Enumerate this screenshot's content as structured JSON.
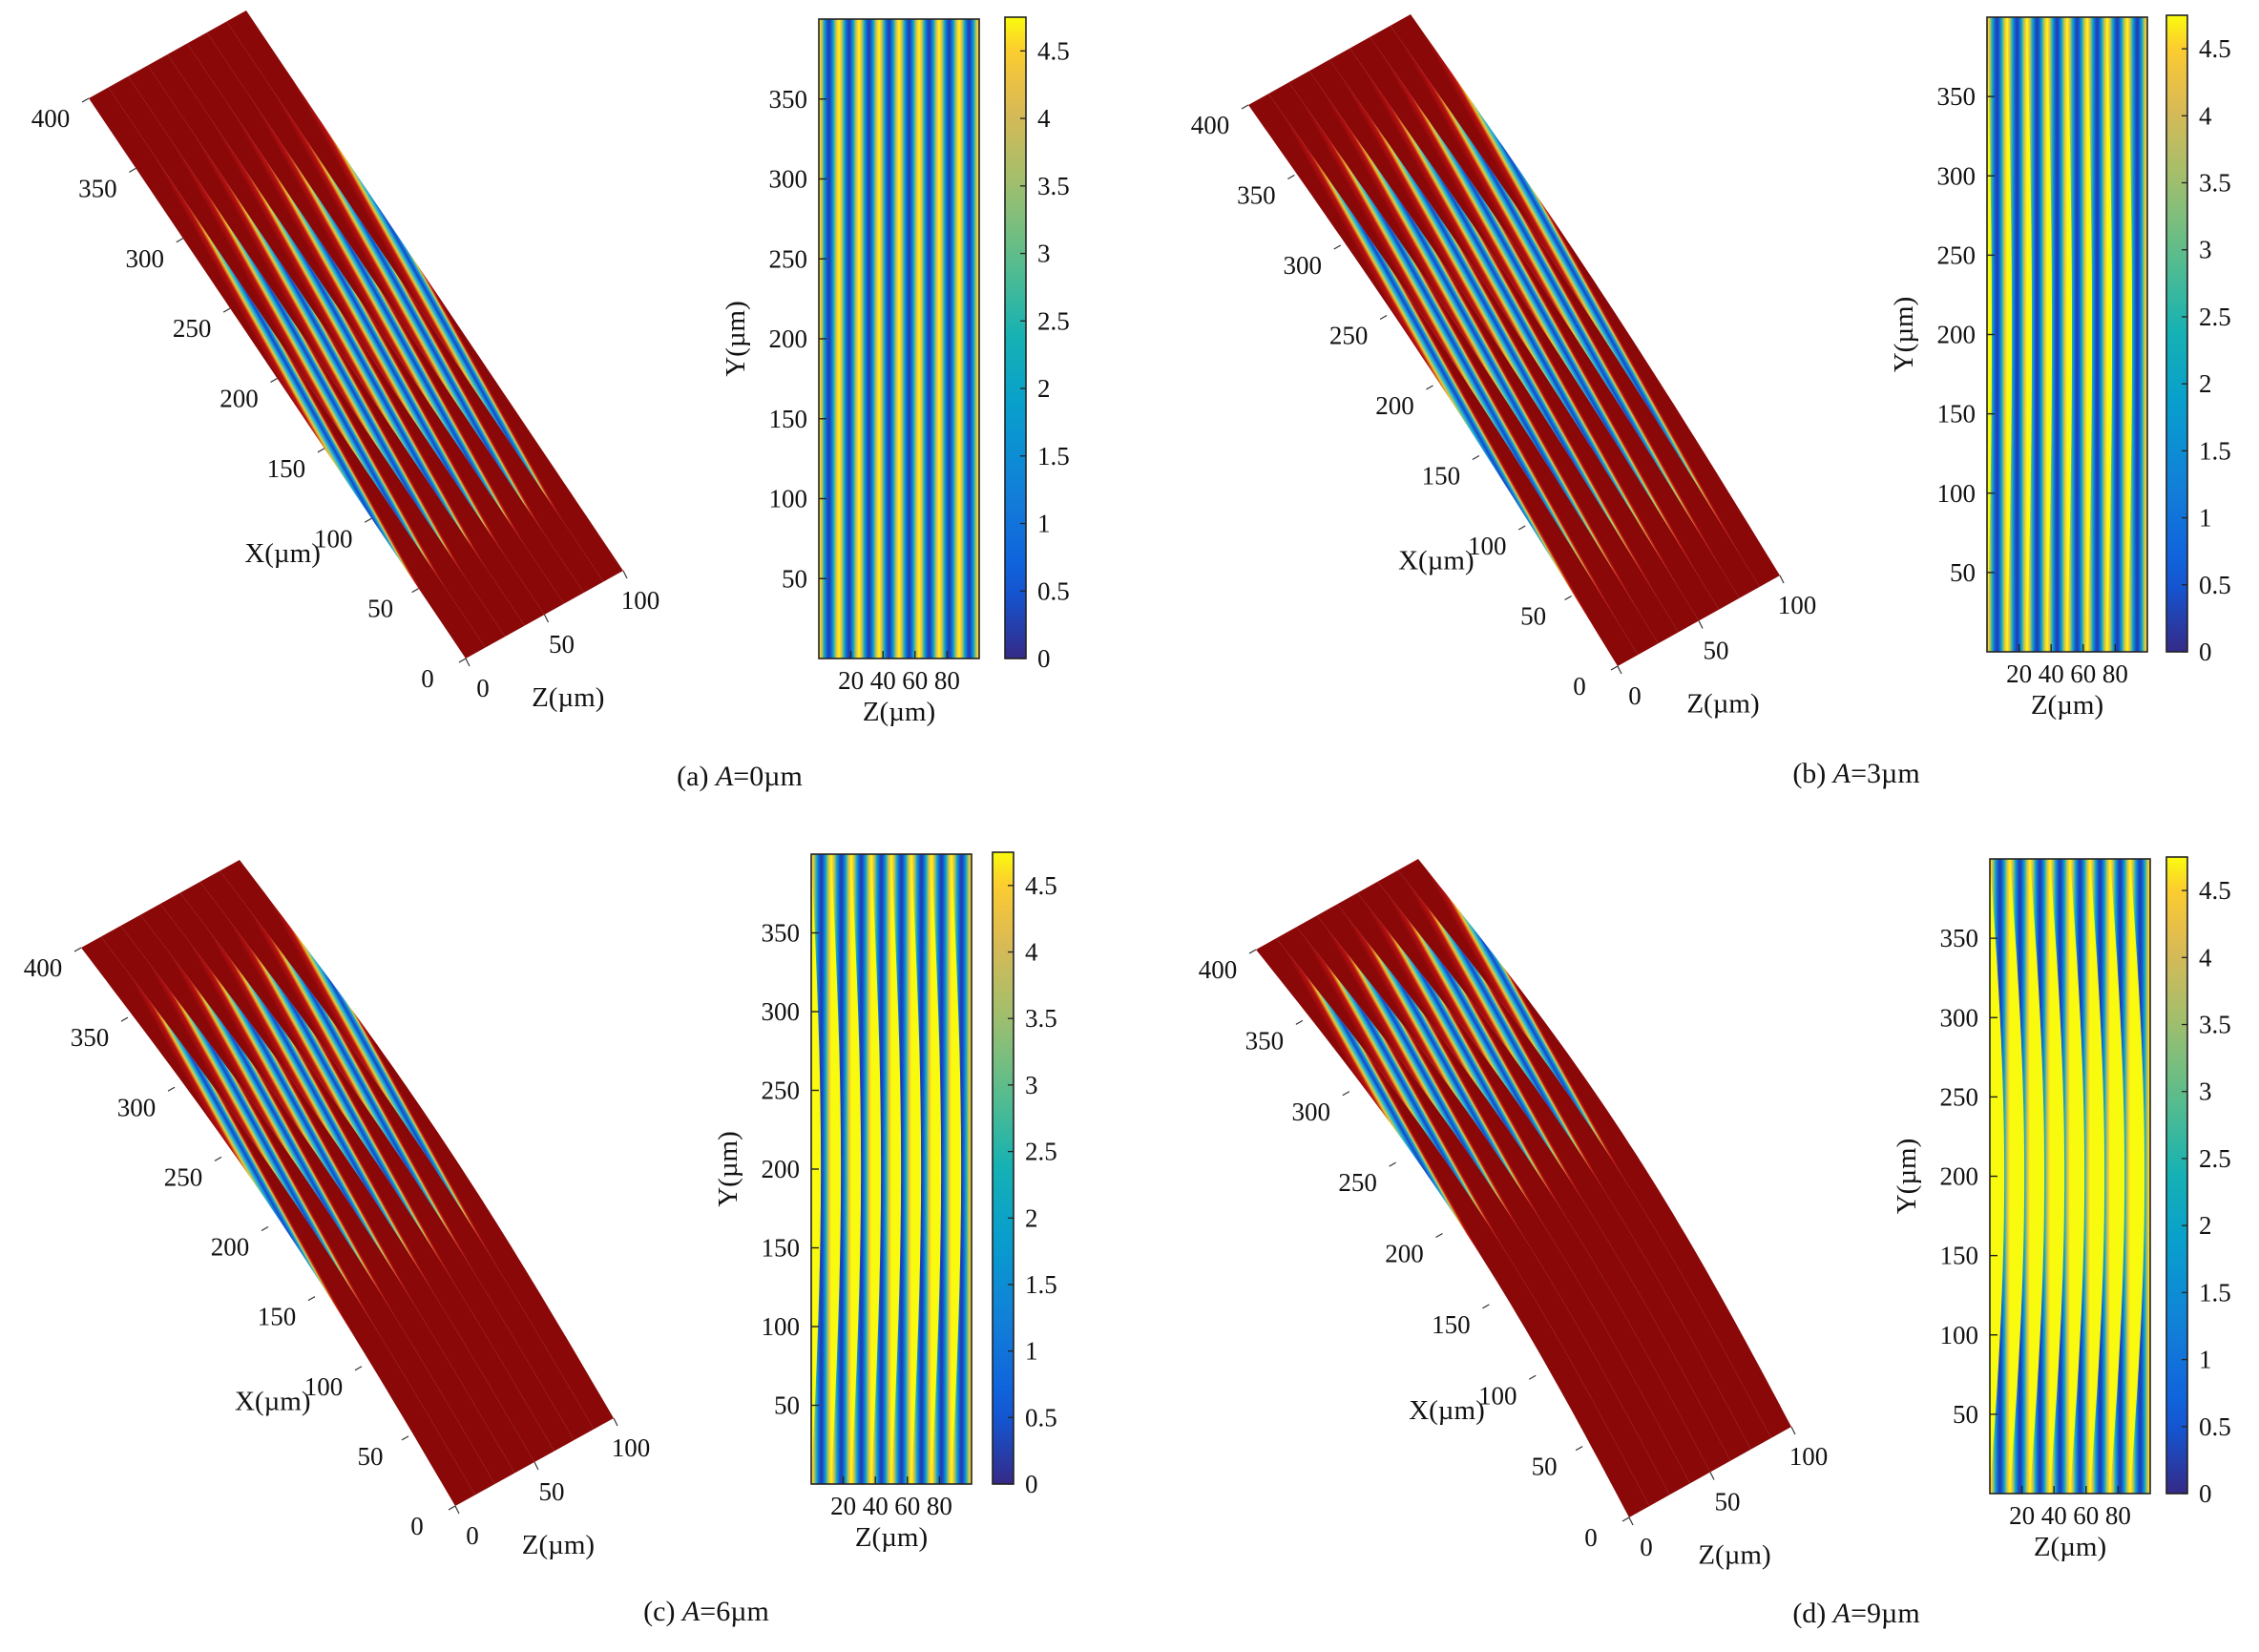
{
  "chart_data": [
    {
      "panel": "a",
      "caption_prefix": "(a) ",
      "caption_var": "A",
      "caption_suffix": "=0µm",
      "amplitude_um": 0,
      "surface3d": {
        "type": "surface",
        "xlabel": "X(µm)",
        "zlabel": "Z(µm)",
        "x_ticks": [
          0,
          50,
          100,
          150,
          200,
          250,
          300,
          350,
          400
        ],
        "z_ticks": [
          0,
          50,
          100
        ]
      },
      "map2d": {
        "type": "heatmap",
        "xlabel": "Z(µm)",
        "ylabel": "Y(µm)",
        "x_ticks": [
          20,
          40,
          60,
          80
        ],
        "y_ticks": [
          50,
          100,
          150,
          200,
          250,
          300,
          350
        ],
        "xlim": [
          0,
          100
        ],
        "ylim": [
          0,
          400
        ],
        "stripe_count": 8,
        "colorbar_ticks": [
          "0",
          "0.5",
          "1",
          "1.5",
          "2",
          "2.5",
          "3",
          "3.5",
          "4",
          "4.5"
        ],
        "clim": [
          0,
          4.75
        ]
      }
    },
    {
      "panel": "b",
      "caption_prefix": "(b) ",
      "caption_var": "A",
      "caption_suffix": "=3µm",
      "amplitude_um": 3,
      "surface3d": {
        "type": "surface",
        "xlabel": "X(µm)",
        "zlabel": "Z(µm)",
        "x_ticks": [
          0,
          50,
          100,
          150,
          200,
          250,
          300,
          350,
          400
        ],
        "z_ticks": [
          0,
          50,
          100
        ]
      },
      "map2d": {
        "type": "heatmap",
        "xlabel": "Z(µm)",
        "ylabel": "Y(µm)",
        "x_ticks": [
          20,
          40,
          60,
          80
        ],
        "y_ticks": [
          50,
          100,
          150,
          200,
          250,
          300,
          350
        ],
        "xlim": [
          0,
          100
        ],
        "ylim": [
          0,
          400
        ],
        "stripe_count": 8,
        "colorbar_ticks": [
          "0",
          "0.5",
          "1",
          "1.5",
          "2",
          "2.5",
          "3",
          "3.5",
          "4",
          "4.5"
        ],
        "clim": [
          0,
          4.75
        ]
      }
    },
    {
      "panel": "c",
      "caption_prefix": "(c) ",
      "caption_var": "A",
      "caption_suffix": "=6µm",
      "amplitude_um": 6,
      "surface3d": {
        "type": "surface",
        "xlabel": "X(µm)",
        "zlabel": "Z(µm)",
        "x_ticks": [
          0,
          50,
          100,
          150,
          200,
          250,
          300,
          350,
          400
        ],
        "z_ticks": [
          0,
          50,
          100
        ]
      },
      "map2d": {
        "type": "heatmap",
        "xlabel": "Z(µm)",
        "ylabel": "Y(µm)",
        "x_ticks": [
          20,
          40,
          60,
          80
        ],
        "y_ticks": [
          50,
          100,
          150,
          200,
          250,
          300,
          350
        ],
        "xlim": [
          0,
          100
        ],
        "ylim": [
          0,
          400
        ],
        "stripe_count": 8,
        "colorbar_ticks": [
          "0",
          "0.5",
          "1",
          "1.5",
          "2",
          "2.5",
          "3",
          "3.5",
          "4",
          "4.5"
        ],
        "clim": [
          0,
          4.75
        ]
      }
    },
    {
      "panel": "d",
      "caption_prefix": "(d) ",
      "caption_var": "A",
      "caption_suffix": "=9µm",
      "amplitude_um": 9,
      "surface3d": {
        "type": "surface",
        "xlabel": "X(µm)",
        "zlabel": "Z(µm)",
        "x_ticks": [
          0,
          50,
          100,
          150,
          200,
          250,
          300,
          350,
          400
        ],
        "z_ticks": [
          0,
          50,
          100
        ]
      },
      "map2d": {
        "type": "heatmap",
        "xlabel": "Z(µm)",
        "ylabel": "Y(µm)",
        "x_ticks": [
          20,
          40,
          60,
          80
        ],
        "y_ticks": [
          50,
          100,
          150,
          200,
          250,
          300,
          350
        ],
        "xlim": [
          0,
          100
        ],
        "ylim": [
          0,
          400
        ],
        "stripe_count": 8,
        "colorbar_ticks": [
          "0",
          "0.5",
          "1",
          "1.5",
          "2",
          "2.5",
          "3",
          "3.5",
          "4",
          "4.5"
        ],
        "clim": [
          0,
          4.75
        ]
      }
    }
  ]
}
